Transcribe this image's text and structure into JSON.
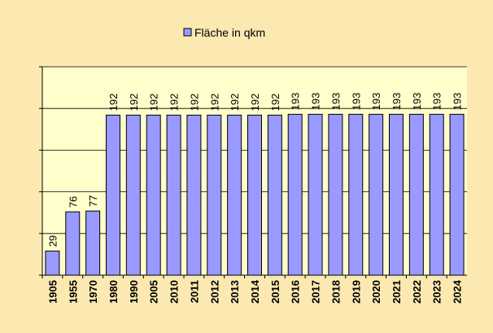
{
  "chart_data": {
    "type": "bar",
    "categories": [
      "1905",
      "1955",
      "1970",
      "1980",
      "1990",
      "2005",
      "2010",
      "2011",
      "2012",
      "2013",
      "2014",
      "2015",
      "2016",
      "2017",
      "2018",
      "2019",
      "2020",
      "2021",
      "2022",
      "2023",
      "2024"
    ],
    "series": [
      {
        "name": "Fläche in qkm",
        "color": "#9999ff",
        "values": [
          29,
          76,
          77,
          192,
          192,
          192,
          192,
          192,
          192,
          192,
          192,
          192,
          193,
          193,
          193,
          193,
          193,
          193,
          193,
          193,
          193
        ]
      }
    ],
    "ylim": [
      0,
      250
    ],
    "yticks": [
      0,
      50,
      100,
      150,
      200,
      250
    ],
    "grid": true,
    "legend": "top"
  }
}
